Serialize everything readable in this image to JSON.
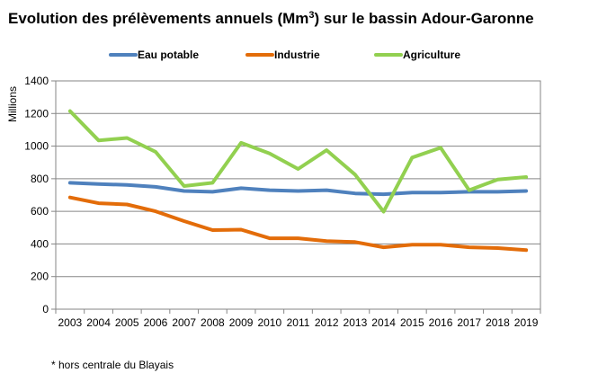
{
  "chart_data": {
    "type": "line",
    "title": {
      "before": "Evolution des prélèvements annuels (Mm",
      "sup": "3",
      "after": ") sur le bassin Adour-Garonne"
    },
    "ylabel": "Millions",
    "xlabel": "",
    "ylim": [
      0,
      1400
    ],
    "yticks": [
      0,
      200,
      400,
      600,
      800,
      1000,
      1200,
      1400
    ],
    "grid": true,
    "legend_position": "top",
    "x": [
      "2003",
      "2004",
      "2005",
      "2006",
      "2007",
      "2008",
      "2009",
      "2010",
      "2011",
      "2012",
      "2013",
      "2014",
      "2015",
      "2016",
      "2017",
      "2018",
      "2019"
    ],
    "series": [
      {
        "name": "Eau potable",
        "color": "#4F81BD",
        "values": [
          775,
          768,
          762,
          750,
          725,
          720,
          742,
          730,
          725,
          730,
          710,
          705,
          715,
          715,
          720,
          720,
          725
        ]
      },
      {
        "name": "Industrie",
        "color": "#E36C09",
        "values": [
          685,
          650,
          642,
          600,
          540,
          485,
          488,
          435,
          435,
          418,
          412,
          380,
          395,
          395,
          380,
          375,
          362
        ]
      },
      {
        "name": "Agriculture",
        "color": "#92D050",
        "values": [
          1215,
          1035,
          1050,
          965,
          755,
          775,
          1020,
          955,
          860,
          975,
          825,
          598,
          930,
          990,
          730,
          795,
          810
        ]
      }
    ],
    "annotation": "* hors centrale du Blayais"
  }
}
